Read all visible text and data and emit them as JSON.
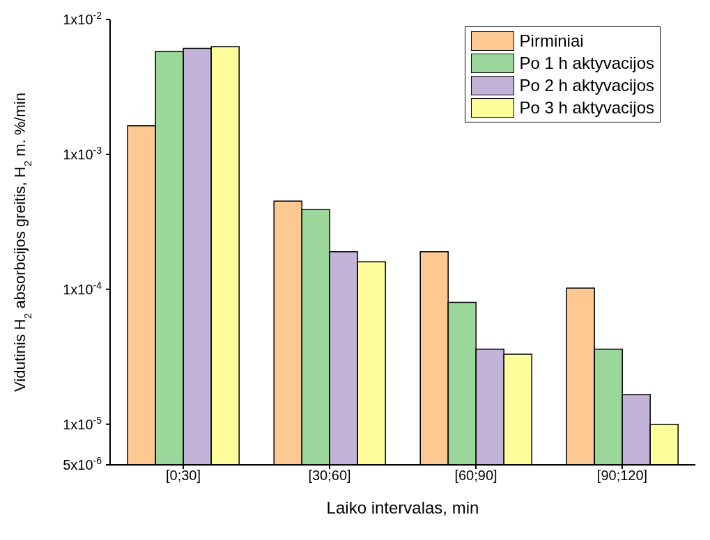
{
  "chart_data": {
    "type": "bar",
    "xlabel": "Laiko intervalas, min",
    "ylabel": "Vidutinis H$_{2}$ absorbcijos greitis, H$_{2}$ m. %/min",
    "categories": [
      "[0;30]",
      "[30;60]",
      "[60;90]",
      "[90;120]"
    ],
    "series": [
      {
        "name": "Pirminiai",
        "color": "#fdc891",
        "values": [
          0.00163,
          0.00045,
          0.00019,
          0.000102
        ]
      },
      {
        "name": "Po 1 h aktyvacijos",
        "color": "#9bd79b",
        "values": [
          0.0058,
          0.00039,
          8e-05,
          3.6e-05
        ]
      },
      {
        "name": "Po 2 h aktyvacijos",
        "color": "#c3b3d9",
        "values": [
          0.0061,
          0.00019,
          3.6e-05,
          1.66e-05
        ]
      },
      {
        "name": "Po 3 h aktyvacijos",
        "color": "#fdfd9c",
        "values": [
          0.0063,
          0.00016,
          3.3e-05,
          1e-05
        ]
      }
    ],
    "log": true,
    "ylim": [
      5e-06,
      0.01
    ],
    "yticks": [
      {
        "value": 5e-06,
        "label": "5x10$^{-6}$"
      },
      {
        "value": 1e-05,
        "label": "1x10$^{-5}$"
      },
      {
        "value": 0.0001,
        "label": "1x10$^{-4}$"
      },
      {
        "value": 0.001,
        "label": "1x10$^{-3}$"
      },
      {
        "value": 0.01,
        "label": "1x10$^{-2}$"
      }
    ],
    "grid": false,
    "legend": "top right"
  }
}
